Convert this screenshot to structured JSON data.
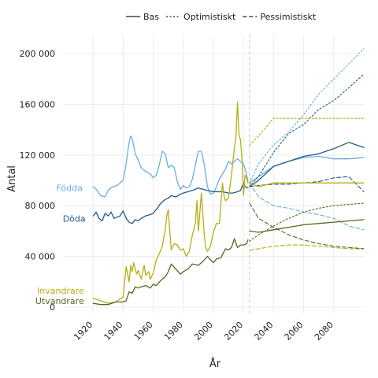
{
  "chart_data": {
    "type": "line",
    "xlabel": "År",
    "ylabel": "Antal",
    "xlim": [
      1900,
      2100
    ],
    "ylim": [
      -5000,
      215000
    ],
    "x_ticks": [
      1920,
      1940,
      1960,
      1980,
      2000,
      2020,
      2040,
      2060,
      2080
    ],
    "y_ticks": [
      0,
      40000,
      80000,
      120000,
      160000,
      200000
    ],
    "y_tick_labels": [
      "0",
      "40 000",
      "80 000",
      "120 000",
      "160 000",
      "200 000"
    ],
    "grid": true,
    "forecast_start_year": 2024,
    "legend": {
      "placement": "top",
      "entries": [
        {
          "label": "Bas",
          "dash": "solid"
        },
        {
          "label": "Optimistiskt",
          "dash": "dotted"
        },
        {
          "label": "Pessimistiskt",
          "dash": "dashed"
        }
      ]
    },
    "colors": {
      "Födda": "#6aaede",
      "Döda": "#1f5b8c",
      "Invandrare": "#b8ad14",
      "Utvandrare": "#5a6420",
      "gridline": "#ececec",
      "forecast_line": "#cccccc"
    },
    "series": [
      {
        "name": "Födda",
        "scenario": "historical",
        "x": [
          1920,
          1922,
          1925,
          1928,
          1930,
          1933,
          1936,
          1938,
          1940,
          1942,
          1943,
          1944,
          1945,
          1946,
          1948,
          1950,
          1952,
          1955,
          1958,
          1960,
          1962,
          1964,
          1966,
          1968,
          1970,
          1972,
          1974,
          1976,
          1978,
          1980,
          1982,
          1984,
          1986,
          1988,
          1990,
          1992,
          1994,
          1996,
          1998,
          2000,
          2002,
          2004,
          2006,
          2008,
          2010,
          2012,
          2014,
          2016,
          2018,
          2020,
          2022,
          2023
        ],
        "y": [
          95000,
          93000,
          88000,
          87000,
          92000,
          95000,
          96000,
          98000,
          100000,
          113000,
          122000,
          130000,
          135000,
          133000,
          121000,
          116000,
          110000,
          107000,
          105000,
          102000,
          104000,
          112000,
          123000,
          121000,
          110000,
          112000,
          110000,
          99000,
          93000,
          96000,
          94000,
          95000,
          101000,
          112000,
          123000,
          123000,
          112000,
          95000,
          89000,
          90000,
          95000,
          101000,
          105000,
          109000,
          115000,
          113000,
          115000,
          117000,
          115000,
          113000,
          105000,
          99000
        ]
      },
      {
        "name": "Födda",
        "scenario": "Bas",
        "x": [
          2024,
          2030,
          2040,
          2050,
          2060,
          2070,
          2080,
          2090,
          2100
        ],
        "y": [
          98000,
          103000,
          111000,
          115000,
          118000,
          119000,
          117000,
          117000,
          118000
        ]
      },
      {
        "name": "Födda",
        "scenario": "Optimistiskt",
        "x": [
          2024,
          2030,
          2040,
          2050,
          2060,
          2070,
          2080,
          2090,
          2100
        ],
        "y": [
          98000,
          113000,
          128000,
          138000,
          152000,
          168000,
          180000,
          192000,
          204000
        ]
      },
      {
        "name": "Födda",
        "scenario": "Pessimistiskt",
        "x": [
          2024,
          2030,
          2040,
          2050,
          2060,
          2070,
          2080,
          2090,
          2100
        ],
        "y": [
          98000,
          87000,
          80000,
          78000,
          75000,
          73000,
          70000,
          64000,
          61000
        ]
      },
      {
        "name": "Döda",
        "scenario": "historical",
        "x": [
          1920,
          1922,
          1924,
          1926,
          1928,
          1930,
          1932,
          1934,
          1936,
          1938,
          1940,
          1942,
          1944,
          1946,
          1948,
          1950,
          1952,
          1955,
          1958,
          1960,
          1962,
          1965,
          1968,
          1970,
          1972,
          1975,
          1978,
          1980,
          1983,
          1986,
          1990,
          1993,
          1996,
          2000,
          2003,
          2006,
          2010,
          2013,
          2016,
          2018,
          2020,
          2021,
          2023
        ],
        "y": [
          72000,
          75000,
          70000,
          68000,
          74000,
          72000,
          75000,
          70000,
          71000,
          72000,
          76000,
          70000,
          67000,
          66000,
          69000,
          68000,
          70000,
          72000,
          73000,
          74000,
          77000,
          82000,
          85000,
          86000,
          88000,
          87000,
          89000,
          90000,
          91000,
          92000,
          94000,
          93000,
          92000,
          91000,
          91000,
          91000,
          90000,
          90000,
          91000,
          92000,
          98000,
          95000,
          94000
        ]
      },
      {
        "name": "Döda",
        "scenario": "Bas",
        "x": [
          2024,
          2030,
          2040,
          2050,
          2060,
          2070,
          2080,
          2090,
          2100
        ],
        "y": [
          95000,
          100000,
          111000,
          115000,
          119000,
          121000,
          125000,
          130000,
          126000
        ]
      },
      {
        "name": "Döda",
        "scenario": "Optimistiskt",
        "x": [
          2024,
          2030,
          2040,
          2050,
          2060,
          2070,
          2080,
          2090,
          2100
        ],
        "y": [
          95000,
          103000,
          122000,
          137000,
          144000,
          156000,
          163000,
          173000,
          184000
        ]
      },
      {
        "name": "Döda",
        "scenario": "Pessimistiskt",
        "x": [
          2024,
          2030,
          2040,
          2050,
          2060,
          2070,
          2080,
          2090,
          2100
        ],
        "y": [
          95000,
          96000,
          97000,
          97000,
          98000,
          99000,
          102000,
          103000,
          91000
        ]
      },
      {
        "name": "Invandrare",
        "scenario": "historical",
        "x": [
          1920,
          1925,
          1930,
          1935,
          1940,
          1942,
          1944,
          1945,
          1946,
          1947,
          1948,
          1949,
          1950,
          1952,
          1954,
          1955,
          1957,
          1958,
          1960,
          1962,
          1964,
          1966,
          1967,
          1968,
          1969,
          1970,
          1971,
          1972,
          1974,
          1976,
          1978,
          1980,
          1982,
          1984,
          1986,
          1988,
          1989,
          1990,
          1991,
          1992,
          1994,
          1995,
          1996,
          1998,
          2000,
          2002,
          2004,
          2006,
          2007,
          2008,
          2010,
          2012,
          2014,
          2015,
          2016,
          2017,
          2018,
          2019,
          2020,
          2021,
          2022,
          2023
        ],
        "y": [
          7000,
          5000,
          3000,
          4000,
          8000,
          32000,
          20000,
          33000,
          28000,
          35000,
          30000,
          26000,
          29000,
          22000,
          33000,
          25000,
          28000,
          22000,
          27000,
          37000,
          42000,
          48000,
          55000,
          61000,
          72000,
          77000,
          60000,
          45000,
          50000,
          49000,
          45000,
          46000,
          40000,
          44000,
          57000,
          66000,
          84000,
          60000,
          75000,
          90000,
          56000,
          47000,
          44000,
          48000,
          59000,
          66000,
          66000,
          98000,
          88000,
          84000,
          86000,
          104000,
          126000,
          134000,
          162000,
          136000,
          132000,
          117000,
          88000,
          104000,
          102000,
          98000
        ]
      },
      {
        "name": "Invandrare",
        "scenario": "Bas",
        "x": [
          2024,
          2030,
          2040,
          2050,
          2060,
          2070,
          2080,
          2090,
          2100
        ],
        "y": [
          98000,
          95000,
          98000,
          98000,
          98000,
          98000,
          98000,
          98000,
          98000
        ]
      },
      {
        "name": "Invandrare",
        "scenario": "Optimistiskt",
        "x": [
          2024,
          2030,
          2040,
          2050,
          2060,
          2070,
          2080,
          2090,
          2100
        ],
        "y": [
          128000,
          135000,
          149000,
          149000,
          149000,
          149000,
          149000,
          149000,
          149000
        ]
      },
      {
        "name": "Invandrare",
        "scenario": "Pessimistiskt",
        "x": [
          2024,
          2030,
          2040,
          2050,
          2060,
          2070,
          2080,
          2090,
          2100
        ],
        "y": [
          45000,
          46000,
          48000,
          49000,
          49000,
          48000,
          47000,
          46000,
          46000
        ]
      },
      {
        "name": "Utvandrare",
        "scenario": "historical",
        "x": [
          1920,
          1925,
          1930,
          1935,
          1940,
          1942,
          1944,
          1946,
          1948,
          1950,
          1952,
          1955,
          1958,
          1960,
          1962,
          1965,
          1968,
          1970,
          1972,
          1975,
          1978,
          1980,
          1983,
          1986,
          1990,
          1993,
          1996,
          2000,
          2002,
          2005,
          2008,
          2010,
          2012,
          2014,
          2016,
          2018,
          2020,
          2022,
          2023
        ],
        "y": [
          3000,
          2000,
          2000,
          4000,
          4000,
          5000,
          12000,
          11000,
          16000,
          15000,
          16000,
          17000,
          15000,
          18000,
          17000,
          21000,
          24000,
          28000,
          34000,
          30000,
          26000,
          28000,
          30000,
          34000,
          33000,
          36000,
          40000,
          35000,
          38000,
          39000,
          46000,
          45000,
          47000,
          54000,
          47000,
          49000,
          49000,
          50000,
          53000
        ]
      },
      {
        "name": "Utvandrare",
        "scenario": "Bas",
        "x": [
          2024,
          2030,
          2040,
          2050,
          2060,
          2070,
          2080,
          2090,
          2100
        ],
        "y": [
          60000,
          59000,
          61000,
          63000,
          65000,
          66000,
          67000,
          68000,
          69000
        ]
      },
      {
        "name": "Utvandrare",
        "scenario": "Optimistiskt",
        "x": [
          2024,
          2030,
          2040,
          2050,
          2060,
          2070,
          2080,
          2090,
          2100
        ],
        "y": [
          52000,
          57000,
          64000,
          70000,
          75000,
          78000,
          80000,
          81000,
          82000
        ]
      },
      {
        "name": "Utvandrare",
        "scenario": "Pessimistiskt",
        "x": [
          2024,
          2030,
          2040,
          2050,
          2060,
          2070,
          2080,
          2090,
          2100
        ],
        "y": [
          82000,
          70000,
          63000,
          57000,
          53000,
          50000,
          48000,
          47000,
          46000
        ]
      }
    ],
    "series_labels": [
      {
        "text": "Födda",
        "series": "Födda",
        "x": 1913,
        "y": 94000
      },
      {
        "text": "Döda",
        "series": "Döda",
        "x": 1915,
        "y": 70000
      },
      {
        "text": "Invandrare",
        "series": "Invandrare",
        "x": 1914,
        "y": 13000
      },
      {
        "text": "Utvandrare",
        "series": "Utvandrare",
        "x": 1914,
        "y": 5000
      }
    ]
  }
}
